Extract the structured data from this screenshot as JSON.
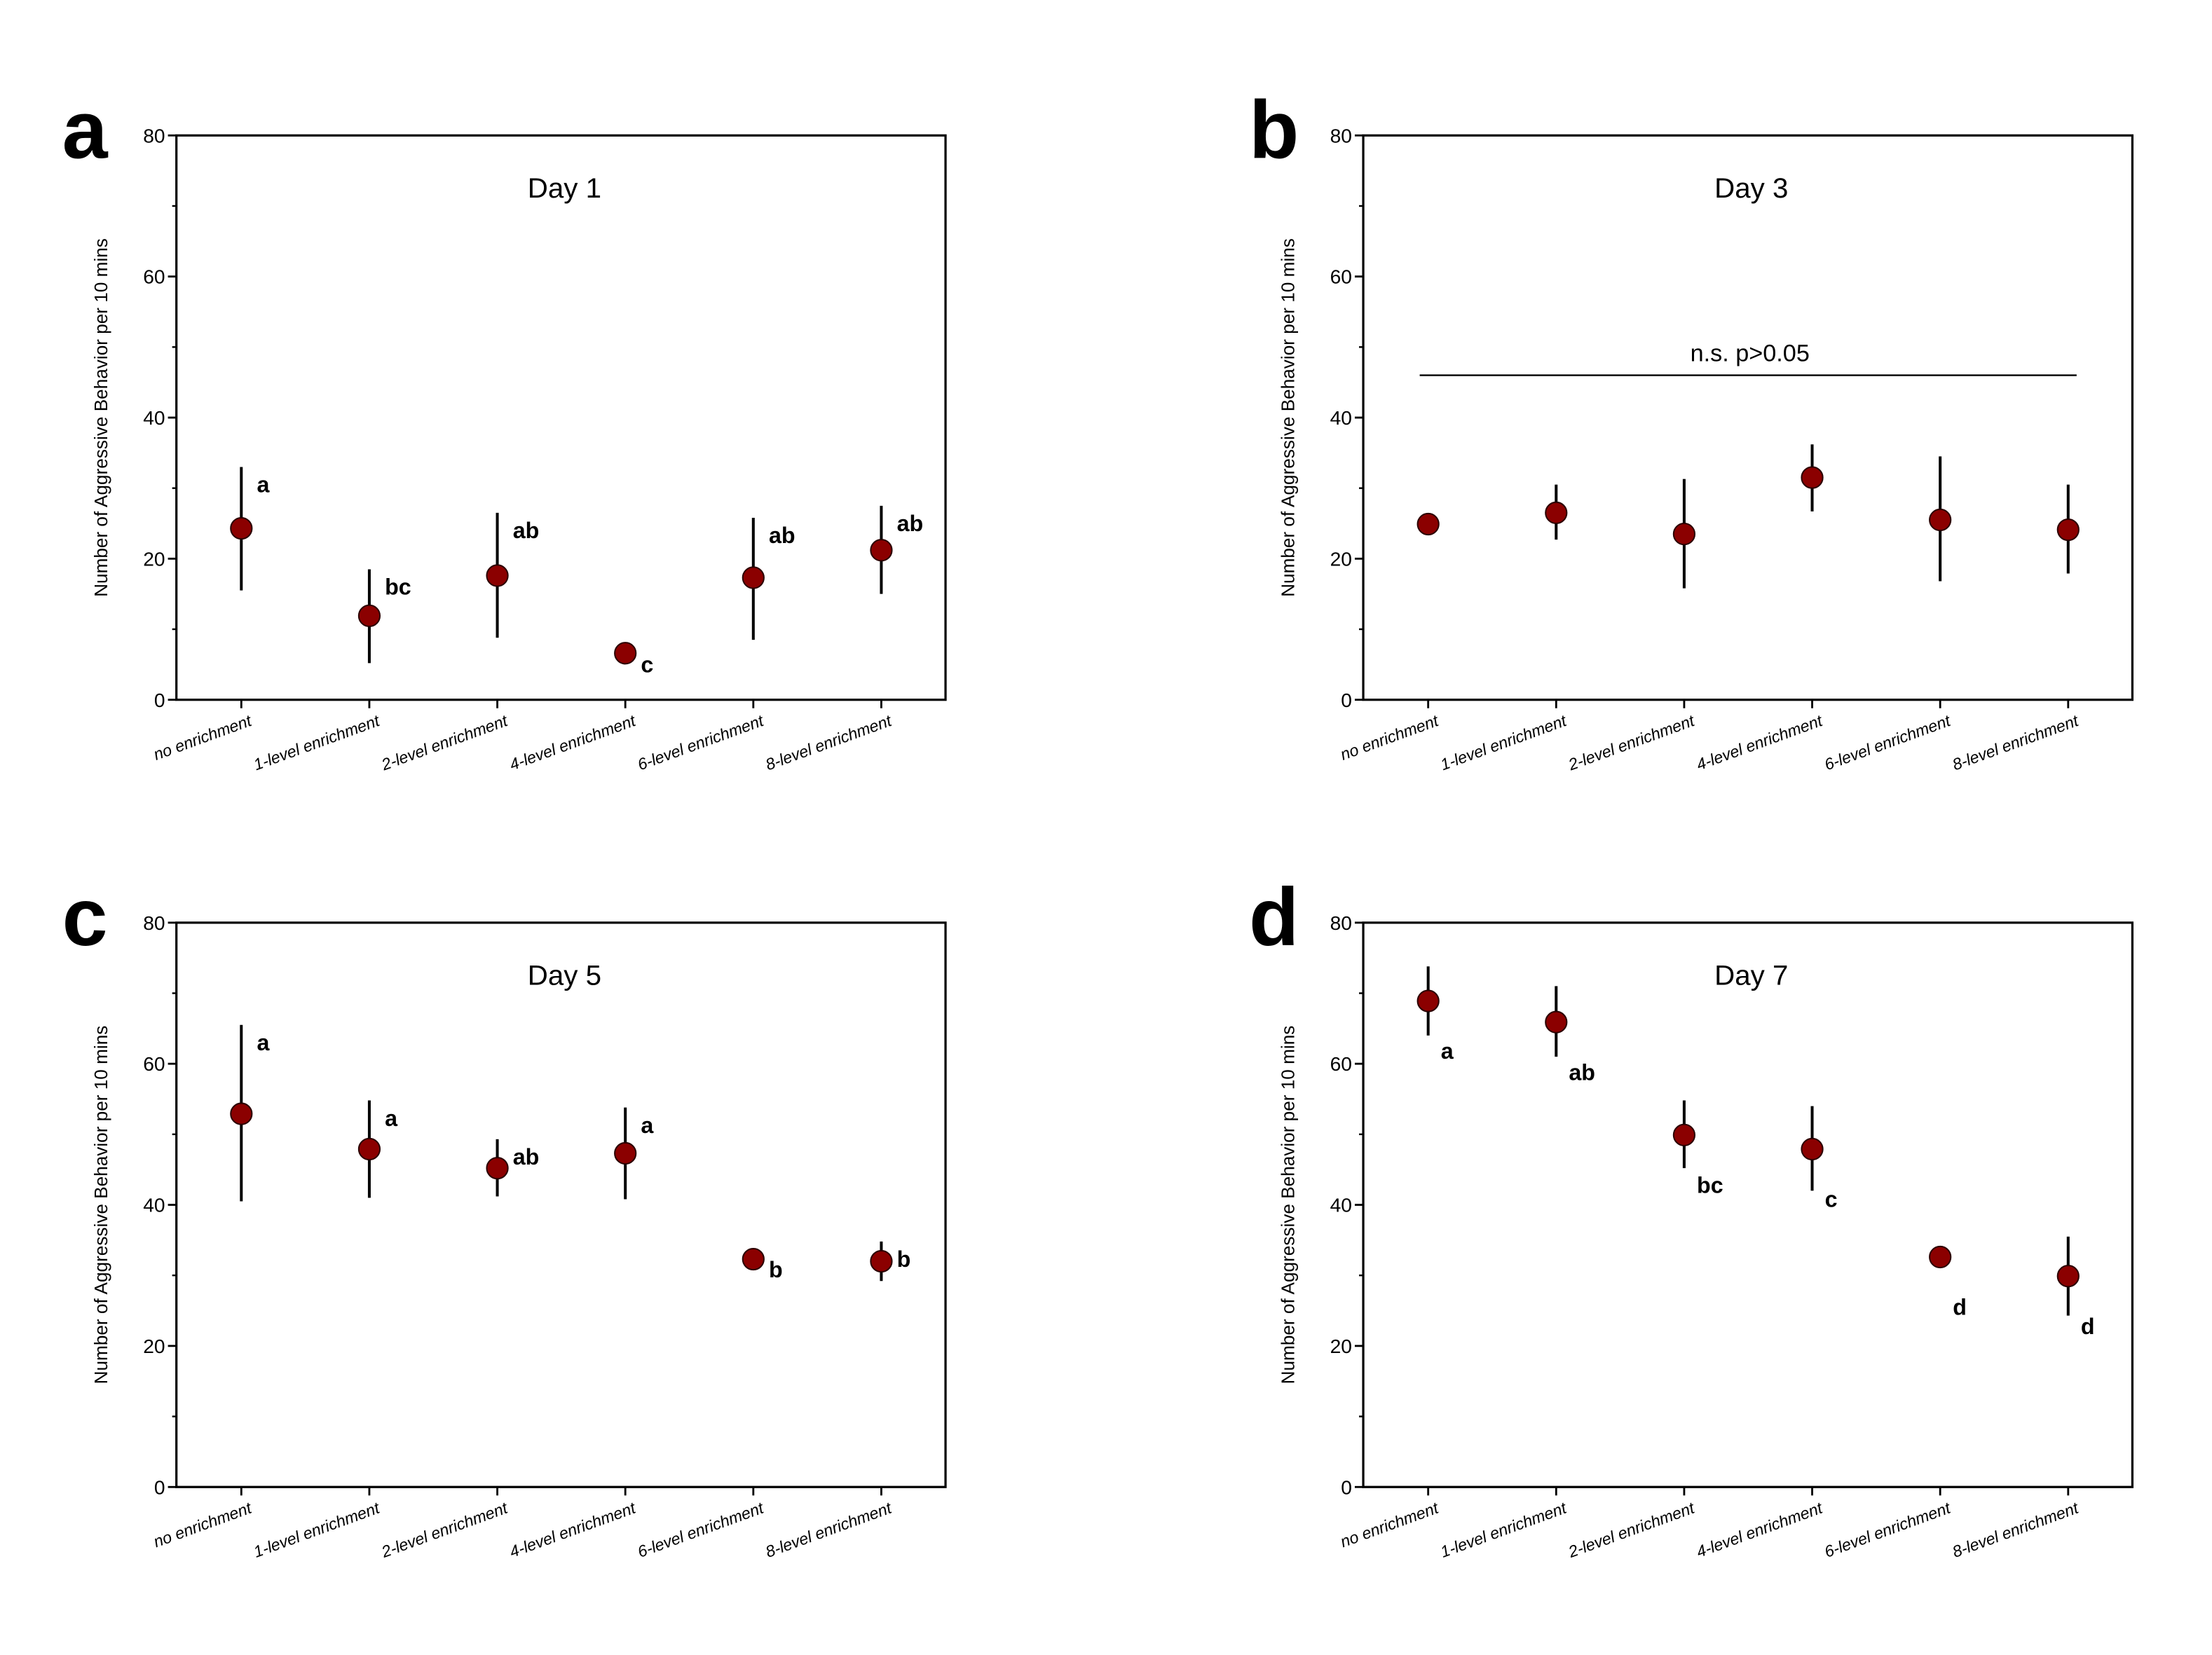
{
  "colors": {
    "marker": "#8b0000",
    "marker_edge": "#2a0000",
    "ink": "#000000",
    "background": "#ffffff"
  },
  "chart_data": [
    {
      "panel_letter": "a",
      "type": "scatter",
      "title": "Day 1",
      "ylabel": "Number of Aggressive Behavior per 10 mins",
      "ylim": [
        0,
        80
      ],
      "yticks": [
        "0",
        "20",
        "40",
        "60",
        "80"
      ],
      "categories": [
        "no enrichment",
        "1-level enrichment",
        "2-level enrichment",
        "4-level enrichment",
        "6-level enrichment",
        "8-level enrichment"
      ],
      "values": [
        24.3,
        11.9,
        17.6,
        6.6,
        17.3,
        21.2
      ],
      "err_low": [
        15.5,
        5.2,
        8.8,
        5.8,
        8.5,
        15.0
      ],
      "err_high": [
        33.0,
        18.5,
        26.5,
        7.5,
        25.8,
        27.5
      ],
      "sig_letters": [
        "a",
        "bc",
        "ab",
        "c",
        "ab",
        "ab"
      ],
      "letter_position": "above-right",
      "grid": false
    },
    {
      "panel_letter": "b",
      "type": "scatter",
      "title": "Day 3",
      "ylabel": "Number of Aggressive Behavior per 10 mins",
      "ylim": [
        0,
        80
      ],
      "yticks": [
        "0",
        "20",
        "40",
        "60",
        "80"
      ],
      "categories": [
        "no enrichment",
        "1-level enrichment",
        "2-level enrichment",
        "4-level enrichment",
        "6-level enrichment",
        "8-level enrichment"
      ],
      "values": [
        24.9,
        26.5,
        23.5,
        31.5,
        25.5,
        24.1
      ],
      "err_low": [
        23.5,
        22.7,
        15.8,
        26.7,
        16.8,
        17.9
      ],
      "err_high": [
        26.3,
        30.5,
        31.3,
        36.2,
        34.5,
        30.5
      ],
      "sig_letters": [],
      "annotation": {
        "text": "n.s.  p>0.05",
        "y": 46
      },
      "grid": false
    },
    {
      "panel_letter": "c",
      "type": "scatter",
      "title": "Day 5",
      "ylabel": "Number of Aggressive Behavior per 10 mins",
      "ylim": [
        0,
        80
      ],
      "yticks": [
        "0",
        "20",
        "40",
        "60",
        "80"
      ],
      "categories": [
        "no enrichment",
        "1-level enrichment",
        "2-level enrichment",
        "4-level enrichment",
        "6-level enrichment",
        "8-level enrichment"
      ],
      "values": [
        52.9,
        47.9,
        45.2,
        47.3,
        32.3,
        32.0
      ],
      "err_low": [
        40.5,
        41.0,
        41.2,
        40.8,
        31.5,
        29.2
      ],
      "err_high": [
        65.5,
        54.8,
        49.3,
        53.8,
        33.3,
        34.8
      ],
      "sig_letters": [
        "a",
        "a",
        "ab",
        "a",
        "b",
        "b"
      ],
      "letter_position": "above-right",
      "grid": false
    },
    {
      "panel_letter": "d",
      "type": "scatter",
      "title": "Day 7",
      "ylabel": "Number of Aggressive Behavior per 10 mins",
      "ylim": [
        0,
        80
      ],
      "yticks": [
        "0",
        "20",
        "40",
        "60",
        "80"
      ],
      "categories": [
        "no enrichment",
        "1-level enrichment",
        "2-level enrichment",
        "4-level enrichment",
        "6-level enrichment",
        "8-level enrichment"
      ],
      "values": [
        68.9,
        65.9,
        49.9,
        47.9,
        32.6,
        29.9
      ],
      "err_low": [
        64.0,
        61.0,
        45.2,
        42.0,
        31.6,
        24.3
      ],
      "err_high": [
        73.8,
        71.0,
        54.8,
        54.0,
        33.6,
        35.5
      ],
      "sig_letters": [
        "a",
        "ab",
        "bc",
        "c",
        "d",
        "d"
      ],
      "letter_position": "below-right",
      "grid": false
    }
  ]
}
